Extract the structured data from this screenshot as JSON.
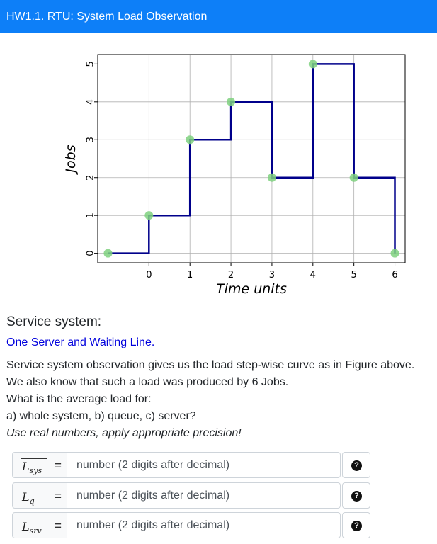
{
  "header": {
    "title": "HW1.1. RTU: System Load Observation"
  },
  "chart_data": {
    "type": "line",
    "step": true,
    "x": [
      -1,
      0,
      0,
      1,
      1,
      2,
      2,
      3,
      3,
      4,
      4,
      5,
      5,
      6,
      6
    ],
    "y": [
      0,
      0,
      1,
      1,
      3,
      3,
      4,
      4,
      2,
      2,
      5,
      5,
      2,
      2,
      0
    ],
    "markers": [
      {
        "x": -1,
        "y": 0
      },
      {
        "x": 0,
        "y": 1
      },
      {
        "x": 1,
        "y": 3
      },
      {
        "x": 2,
        "y": 4
      },
      {
        "x": 3,
        "y": 2
      },
      {
        "x": 4,
        "y": 5
      },
      {
        "x": 5,
        "y": 2
      },
      {
        "x": 6,
        "y": 0
      }
    ],
    "xticks": [
      "0",
      "1",
      "2",
      "3",
      "4",
      "5",
      "6"
    ],
    "yticks": [
      "0",
      "1",
      "2",
      "3",
      "4",
      "5"
    ],
    "xlabel": "Time units",
    "ylabel": "Jobs",
    "xlim": [
      -1.25,
      6.25
    ],
    "ylim": [
      -0.25,
      5.25
    ],
    "grid": true,
    "line_color": "#00008b",
    "marker_color": "#7fd17f"
  },
  "service": {
    "title": "Service system:",
    "subtitle": "One Server and Waiting Line.",
    "line1": "Service system observation gives us the load step-wise curve as in Figure above.",
    "line2": "We also know that such a load was produced by 6 Jobs.",
    "line3": "What is the average load for:",
    "line4": "a) whole system, b) queue, c) server?",
    "line5": "Use real numbers, apply appropriate precision!"
  },
  "answers": [
    {
      "symbol": "L",
      "sub": "sys",
      "eq": "=",
      "placeholder": "number (2 digits after decimal)",
      "help": "?"
    },
    {
      "symbol": "L",
      "sub": "q",
      "eq": "=",
      "placeholder": "number (2 digits after decimal)",
      "help": "?"
    },
    {
      "symbol": "L",
      "sub": "srv",
      "eq": "=",
      "placeholder": "number (2 digits after decimal)",
      "help": "?"
    }
  ]
}
